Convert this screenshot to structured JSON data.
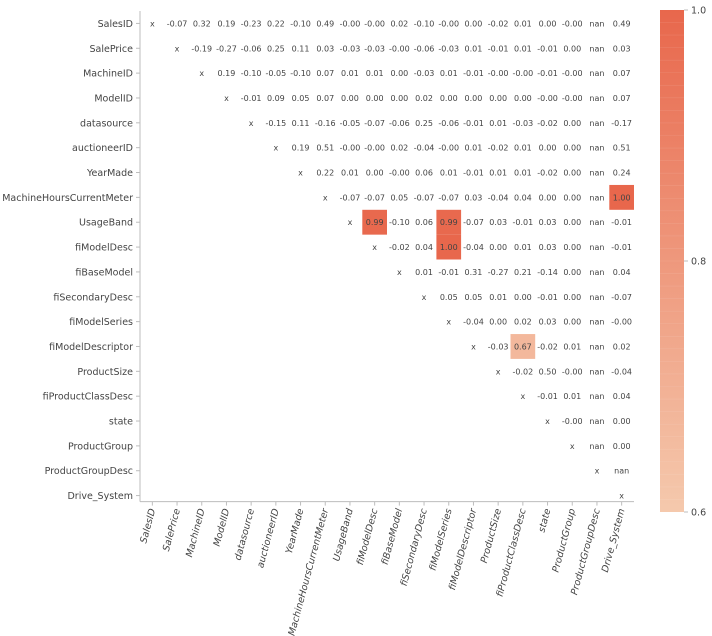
{
  "chart_data": {
    "type": "heatmap",
    "title": "",
    "labels": [
      "SalesID",
      "SalePrice",
      "MachineID",
      "ModelID",
      "datasource",
      "auctioneerID",
      "YearMade",
      "MachineHoursCurrentMeter",
      "UsageBand",
      "fiModelDesc",
      "fiBaseModel",
      "fiSecondaryDesc",
      "fiModelSeries",
      "fiModelDescriptor",
      "ProductSize",
      "fiProductClassDesc",
      "state",
      "ProductGroup",
      "ProductGroupDesc",
      "Drive_System"
    ],
    "cells": [
      [
        "x",
        "-0.07",
        "0.32",
        "0.19",
        "-0.23",
        "0.22",
        "-0.10",
        "0.49",
        "-0.00",
        "-0.00",
        "0.02",
        "-0.10",
        "-0.00",
        "0.00",
        "-0.02",
        "0.01",
        "0.00",
        "-0.00",
        "nan",
        "0.49"
      ],
      [
        "x",
        "-0.19",
        "-0.27",
        "-0.06",
        "0.25",
        "0.11",
        "0.03",
        "-0.03",
        "-0.03",
        "-0.00",
        "-0.06",
        "-0.03",
        "0.01",
        "-0.01",
        "0.01",
        "-0.01",
        "0.00",
        "nan",
        "0.03"
      ],
      [
        "x",
        "0.19",
        "-0.10",
        "-0.05",
        "-0.10",
        "0.07",
        "0.01",
        "0.01",
        "0.00",
        "-0.03",
        "0.01",
        "-0.01",
        "-0.00",
        "-0.00",
        "-0.01",
        "-0.00",
        "nan",
        "0.07"
      ],
      [
        "x",
        "-0.01",
        "0.09",
        "0.05",
        "0.07",
        "0.00",
        "0.00",
        "0.00",
        "0.02",
        "0.00",
        "0.00",
        "0.00",
        "0.00",
        "-0.00",
        "-0.00",
        "nan",
        "0.07"
      ],
      [
        "x",
        "-0.15",
        "0.11",
        "-0.16",
        "-0.05",
        "-0.07",
        "-0.06",
        "0.25",
        "-0.06",
        "-0.01",
        "0.01",
        "-0.03",
        "-0.02",
        "0.00",
        "nan",
        "-0.17"
      ],
      [
        "x",
        "0.19",
        "0.51",
        "-0.00",
        "-0.00",
        "0.02",
        "-0.04",
        "-0.00",
        "0.01",
        "-0.02",
        "0.01",
        "0.00",
        "0.00",
        "nan",
        "0.51"
      ],
      [
        "x",
        "0.22",
        "0.01",
        "0.00",
        "-0.00",
        "0.06",
        "0.01",
        "-0.01",
        "0.01",
        "0.01",
        "-0.02",
        "0.00",
        "nan",
        "0.24"
      ],
      [
        "x",
        "-0.07",
        "-0.07",
        "0.05",
        "-0.07",
        "-0.07",
        "0.03",
        "-0.04",
        "0.04",
        "0.00",
        "0.00",
        "nan",
        "1.00"
      ],
      [
        "x",
        "0.99",
        "-0.10",
        "0.06",
        "0.99",
        "-0.07",
        "0.03",
        "-0.01",
        "0.03",
        "0.00",
        "nan",
        "-0.01"
      ],
      [
        "x",
        "-0.02",
        "0.04",
        "1.00",
        "-0.04",
        "0.00",
        "0.01",
        "0.03",
        "0.00",
        "nan",
        "-0.01"
      ],
      [
        "x",
        "0.01",
        "-0.01",
        "0.31",
        "-0.27",
        "0.21",
        "-0.14",
        "0.00",
        "nan",
        "0.04"
      ],
      [
        "x",
        "0.05",
        "0.05",
        "0.01",
        "0.00",
        "-0.01",
        "0.00",
        "nan",
        "-0.07"
      ],
      [
        "x",
        "-0.04",
        "0.00",
        "0.02",
        "0.03",
        "0.00",
        "nan",
        "-0.00"
      ],
      [
        "x",
        "-0.03",
        "0.67",
        "-0.02",
        "0.01",
        "nan",
        "0.02"
      ],
      [
        "x",
        "-0.02",
        "0.50",
        "-0.00",
        "nan",
        "-0.04"
      ],
      [
        "x",
        "-0.01",
        "0.01",
        "nan",
        "0.04"
      ],
      [
        "x",
        "-0.00",
        "nan",
        "0.00"
      ],
      [
        "x",
        "nan",
        "0.00"
      ],
      [
        "x",
        "nan"
      ],
      [
        "x"
      ]
    ],
    "color_range": [
      0.6,
      1.0
    ],
    "colorbar_ticks": [
      "0.6",
      "0.8",
      "1.0"
    ],
    "color_low": "#f5c9ad",
    "color_high": "#e8674c",
    "grid": false,
    "legend": "right-colorbar"
  }
}
